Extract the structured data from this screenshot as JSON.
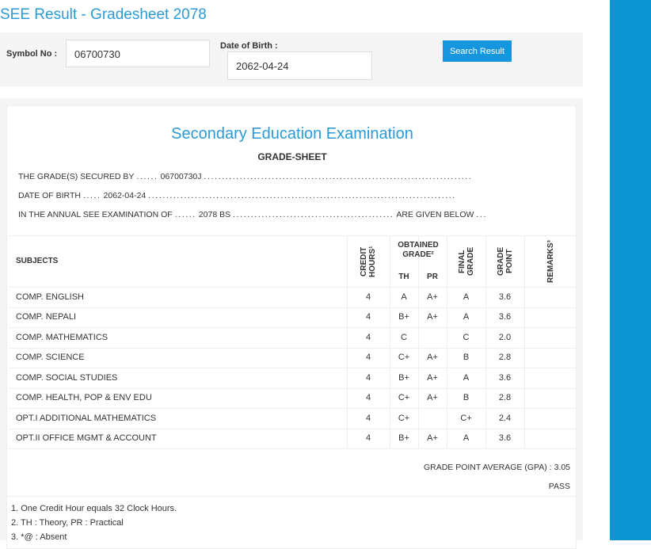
{
  "header": {
    "title": "SEE Result - Gradesheet 2078"
  },
  "form": {
    "symbol_label": "Symbol No :",
    "symbol_value": "06700730",
    "dob_label": "Date of Birth :",
    "dob_value": "2062-04-24",
    "button": "Search Result"
  },
  "sheet": {
    "heading": "Secondary Education Examination",
    "subheading": "GRADE-SHEET",
    "lines": [
      [
        "THE GRADE(S) SECURED BY",
        "......",
        "06700730J",
        "..........................................................................."
      ],
      [
        "DATE OF BIRTH",
        ".....",
        "2062-04-24",
        "......................................................................................"
      ],
      [
        "IN THE ANNUAL SEE EXAMINATION OF",
        "......",
        "2078 BS",
        ".............................................",
        "ARE GIVEN BELOW",
        "..."
      ]
    ],
    "table": {
      "headers": {
        "subjects": "SUBJECTS",
        "credit_hours": "CREDIT HOURS¹",
        "obtained_grade": "OBTAINED GRADE²",
        "th": "TH",
        "pr": "PR",
        "final_grade": "FINAL GRADE",
        "grade_point": "GRADE POINT",
        "remarks": "REMARKS³"
      },
      "rows": [
        [
          "COMP. ENGLISH",
          "4",
          "A",
          "A+",
          "A",
          "3.6"
        ],
        [
          "COMP. NEPALI",
          "4",
          "B+",
          "A+",
          "A",
          "3.6"
        ],
        [
          "COMP. MATHEMATICS",
          "4",
          "C",
          "",
          "C",
          "2.0"
        ],
        [
          "COMP. SCIENCE",
          "4",
          "C+",
          "A+",
          "B",
          "2.8"
        ],
        [
          "COMP. SOCIAL STUDIES",
          "4",
          "B+",
          "A+",
          "A",
          "3.6"
        ],
        [
          "COMP. HEALTH, POP & ENV EDU",
          "4",
          "C+",
          "A+",
          "B",
          "2.8"
        ],
        [
          "OPT.I ADDITIONAL MATHEMATICS",
          "4",
          "C+",
          "",
          "C+",
          "2.4"
        ],
        [
          "OPT.II OFFICE MGMT & ACCOUNT",
          "4",
          "B+",
          "A+",
          "A",
          "3.6"
        ]
      ]
    },
    "gpa_label": "GRADE POINT AVERAGE (GPA) :",
    "gpa": "3.05",
    "result": "PASS",
    "notes": [
      "1. One Credit Hour equals 32 Clock Hours.",
      "2. TH : Theory, PR : Practical",
      "3. *@ : Absent"
    ]
  }
}
